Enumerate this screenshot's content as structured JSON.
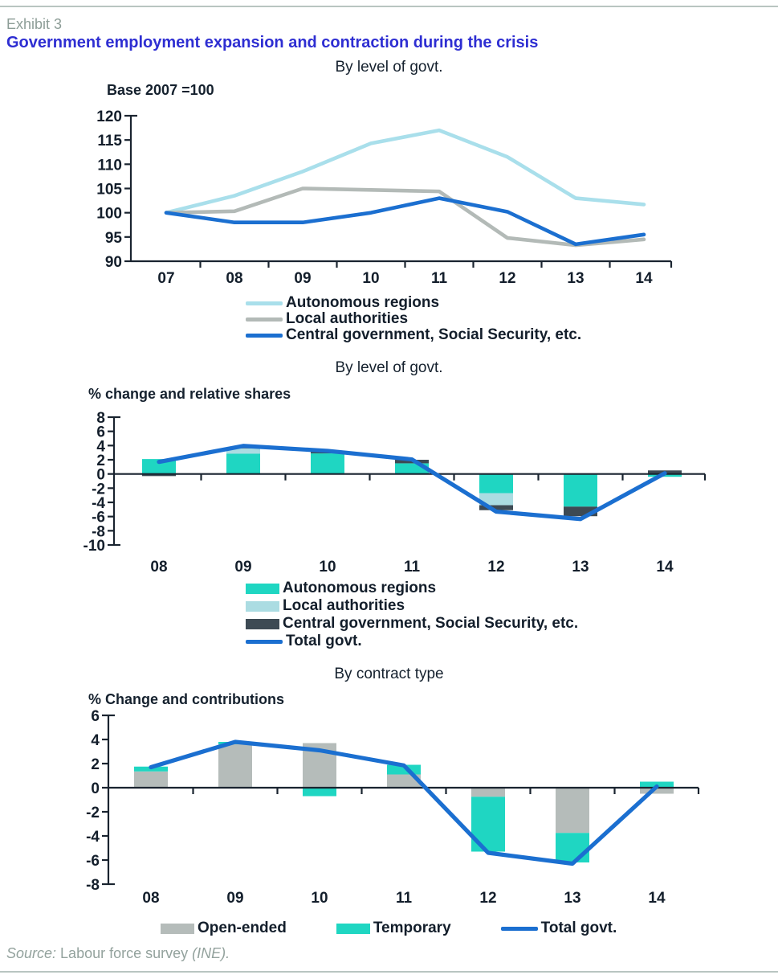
{
  "page": {
    "exhibit_label": "Exhibit 3",
    "title": "Government employment expansion and contraction during the crisis",
    "source": {
      "prefix": "Source:",
      "middle": " Labour force survey ",
      "suffix": "(INE)."
    }
  },
  "colors": {
    "accent_blue_line": "#1b6fd0",
    "autonomous_regions_line": "#a9dfeb",
    "local_authorities_line": "#b3bab7",
    "autonomous_regions_bar": "#1fd6c2",
    "local_authorities_bar": "#abdce2",
    "central_government_bar": "#3d4a54",
    "open_ended_bar": "#b5bcba",
    "temporary_bar": "#1fd6c2",
    "title_blue": "#2e2ed2",
    "muted_gray": "#93a29d"
  },
  "chart_data": [
    {
      "type": "line",
      "title": "By level of govt.",
      "axis_note": "Base 2007 =100",
      "categories": [
        "07",
        "08",
        "09",
        "10",
        "11",
        "12",
        "13",
        "14"
      ],
      "ylim": [
        90,
        120
      ],
      "ytick_step": 5,
      "legend_position": "bottom",
      "grid": false,
      "series": [
        {
          "name": "Autonomous regions",
          "color": "#a9dfeb",
          "values": [
            100,
            103.5,
            108.5,
            114.3,
            117,
            111.5,
            103,
            101.7
          ]
        },
        {
          "name": "Local authorities",
          "color": "#b3bab7",
          "values": [
            100,
            100.3,
            105,
            104.7,
            104.4,
            94.8,
            93.3,
            94.5
          ]
        },
        {
          "name": "Central government, Social Security, etc.",
          "color": "#1b6fd0",
          "values": [
            100,
            98,
            98,
            100,
            103,
            100.2,
            93.5,
            95.5
          ]
        }
      ]
    },
    {
      "type": "stacked-bar-line",
      "title": "By level of govt.",
      "axis_note": "% change and relative shares",
      "categories": [
        "08",
        "09",
        "10",
        "11",
        "12",
        "13",
        "14"
      ],
      "ylim": [
        -10,
        8
      ],
      "ytick_step": 2,
      "legend_position": "bottom",
      "grid": false,
      "bar_series": [
        {
          "name": "Autonomous regions",
          "color": "#1fd6c2",
          "values": [
            2.1,
            2.85,
            2.9,
            1.5,
            -2.7,
            -4.6,
            -0.4
          ]
        },
        {
          "name": "Local authorities",
          "color": "#abdce2",
          "values": [
            0,
            0.75,
            0,
            0,
            -1.7,
            0,
            0
          ]
        },
        {
          "name": "Central government, Social Security, etc.",
          "color": "#3d4a54",
          "values": [
            -0.3,
            0.1,
            0.25,
            0.5,
            -0.7,
            -1.35,
            0.5
          ]
        }
      ],
      "line_series": {
        "name": "Total govt.",
        "color": "#1b6fd0",
        "values": [
          1.7,
          3.95,
          3.25,
          2.05,
          -5.3,
          -6.35,
          0.1
        ]
      }
    },
    {
      "type": "stacked-bar-line",
      "title": "By contract type",
      "axis_note": "% Change and contributions",
      "categories": [
        "08",
        "09",
        "10",
        "11",
        "12",
        "13",
        "14"
      ],
      "ylim": [
        -8,
        6
      ],
      "ytick_step": 2,
      "legend_position": "bottom",
      "grid": false,
      "bar_series": [
        {
          "name": "Open-ended",
          "color": "#b5bcba",
          "values": [
            1.35,
            3.6,
            3.7,
            1.1,
            -0.75,
            -3.75,
            -0.5
          ]
        },
        {
          "name": "Temporary",
          "color": "#1fd6c2",
          "values": [
            0.4,
            0.2,
            -0.7,
            0.8,
            -4.55,
            -2.45,
            0.5
          ]
        }
      ],
      "line_series": {
        "name": "Total govt.",
        "color": "#1b6fd0",
        "values": [
          1.7,
          3.8,
          3.1,
          1.85,
          -5.4,
          -6.3,
          0.1
        ]
      }
    }
  ]
}
